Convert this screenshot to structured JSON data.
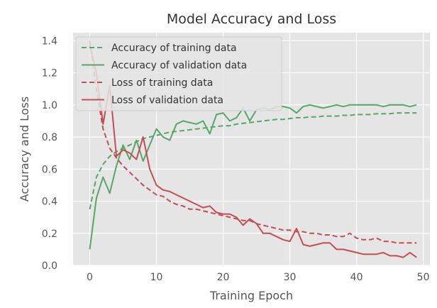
{
  "chart_data": {
    "type": "line",
    "title": "Model Accuracy and Loss",
    "xlabel": "Training Epoch",
    "ylabel": "Accuracy and Loss",
    "xlim": [
      -2.5,
      51
    ],
    "ylim": [
      0,
      1.45
    ],
    "xticks": [
      0,
      10,
      20,
      30,
      40,
      50
    ],
    "yticks": [
      0.0,
      0.2,
      0.4,
      0.6,
      0.8,
      1.0,
      1.2,
      1.4
    ],
    "xtick_labels": [
      "0",
      "10",
      "20",
      "30",
      "40",
      "50"
    ],
    "ytick_labels": [
      "0.0",
      "0.2",
      "0.4",
      "0.6",
      "0.8",
      "1.0",
      "1.2",
      "1.4"
    ],
    "grid": true,
    "legend_position": "top-left",
    "x": [
      0,
      1,
      2,
      3,
      4,
      5,
      6,
      7,
      8,
      9,
      10,
      11,
      12,
      13,
      14,
      15,
      16,
      17,
      18,
      19,
      20,
      21,
      22,
      23,
      24,
      25,
      26,
      27,
      28,
      29,
      30,
      31,
      32,
      33,
      34,
      35,
      36,
      37,
      38,
      39,
      40,
      41,
      42,
      43,
      44,
      45,
      46,
      47,
      48,
      49
    ],
    "series": [
      {
        "name": "Accuracy of training data",
        "color": "#55a868",
        "dash": "dashed",
        "values": [
          0.35,
          0.55,
          0.63,
          0.68,
          0.71,
          0.73,
          0.75,
          0.77,
          0.79,
          0.8,
          0.81,
          0.82,
          0.83,
          0.835,
          0.84,
          0.845,
          0.85,
          0.855,
          0.86,
          0.865,
          0.87,
          0.87,
          0.88,
          0.885,
          0.89,
          0.895,
          0.9,
          0.905,
          0.91,
          0.91,
          0.915,
          0.92,
          0.92,
          0.925,
          0.925,
          0.93,
          0.93,
          0.93,
          0.935,
          0.935,
          0.94,
          0.94,
          0.94,
          0.945,
          0.945,
          0.945,
          0.95,
          0.95,
          0.95,
          0.95
        ]
      },
      {
        "name": "Accuracy of validation data",
        "color": "#55a868",
        "dash": "solid",
        "values": [
          0.1,
          0.42,
          0.55,
          0.45,
          0.62,
          0.75,
          0.66,
          0.78,
          0.65,
          0.75,
          0.85,
          0.8,
          0.78,
          0.88,
          0.9,
          0.89,
          0.88,
          0.9,
          0.82,
          0.94,
          0.95,
          0.9,
          0.92,
          0.98,
          0.9,
          0.97,
          0.98,
          0.97,
          0.99,
          0.99,
          0.98,
          0.95,
          0.99,
          1.0,
          0.99,
          0.98,
          0.99,
          1.0,
          0.99,
          1.0,
          1.0,
          1.0,
          1.0,
          1.0,
          0.99,
          1.0,
          1.0,
          1.0,
          0.99,
          1.0
        ]
      },
      {
        "name": "Loss of training data",
        "color": "#c44e52",
        "dash": "dashed",
        "values": [
          1.4,
          1.1,
          0.85,
          0.73,
          0.67,
          0.62,
          0.58,
          0.54,
          0.5,
          0.47,
          0.44,
          0.43,
          0.4,
          0.38,
          0.37,
          0.35,
          0.35,
          0.34,
          0.33,
          0.32,
          0.31,
          0.3,
          0.29,
          0.28,
          0.28,
          0.26,
          0.25,
          0.24,
          0.23,
          0.22,
          0.22,
          0.21,
          0.21,
          0.2,
          0.2,
          0.19,
          0.19,
          0.18,
          0.18,
          0.2,
          0.17,
          0.16,
          0.16,
          0.17,
          0.15,
          0.15,
          0.14,
          0.14,
          0.14,
          0.14
        ]
      },
      {
        "name": "Loss of validation data",
        "color": "#c44e52",
        "dash": "solid",
        "values": [
          1.38,
          1.2,
          0.88,
          1.12,
          0.68,
          0.72,
          0.7,
          0.66,
          0.8,
          0.6,
          0.5,
          0.47,
          0.46,
          0.44,
          0.42,
          0.4,
          0.38,
          0.36,
          0.37,
          0.33,
          0.32,
          0.32,
          0.3,
          0.25,
          0.29,
          0.26,
          0.2,
          0.2,
          0.18,
          0.16,
          0.15,
          0.23,
          0.13,
          0.12,
          0.13,
          0.14,
          0.14,
          0.1,
          0.1,
          0.09,
          0.08,
          0.07,
          0.07,
          0.07,
          0.08,
          0.06,
          0.06,
          0.05,
          0.08,
          0.05
        ]
      }
    ]
  }
}
